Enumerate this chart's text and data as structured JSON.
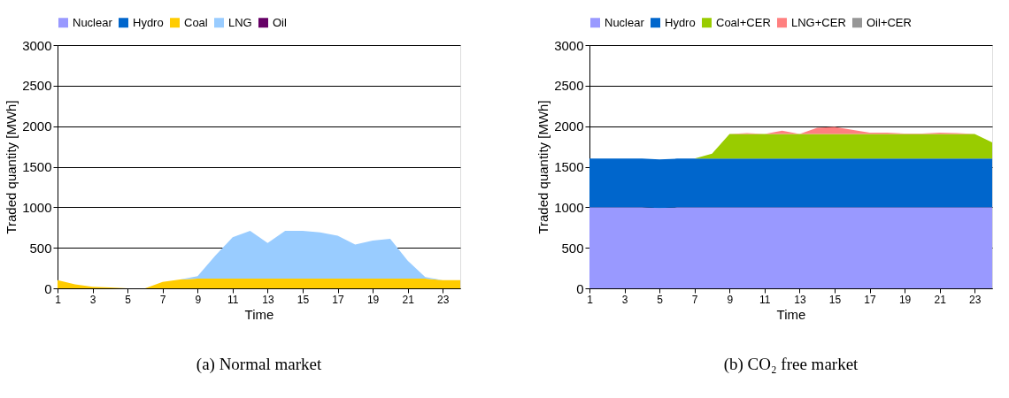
{
  "chart_data": [
    {
      "type": "area",
      "title": "(a) Normal market",
      "xlabel": "Time",
      "ylabel": "Traded quantity [MWh]",
      "stacked": true,
      "legend": "top",
      "grid": "y",
      "x": [
        1,
        2,
        3,
        4,
        5,
        6,
        7,
        8,
        9,
        10,
        11,
        12,
        13,
        14,
        15,
        16,
        17,
        18,
        19,
        20,
        21,
        22,
        23,
        24
      ],
      "xlim": [
        1,
        24
      ],
      "xticks": [
        1,
        3,
        5,
        7,
        9,
        11,
        13,
        15,
        17,
        19,
        21,
        23
      ],
      "ylim": [
        0,
        3000
      ],
      "yticks": [
        0,
        500,
        1000,
        1500,
        2000,
        2500,
        3000
      ],
      "series": [
        {
          "name": "Nuclear",
          "color": "#9999ff",
          "values": [
            null,
            null,
            null,
            null,
            null,
            null,
            null,
            null,
            null,
            null,
            null,
            null,
            null,
            null,
            null,
            null,
            null,
            null,
            null,
            null,
            null,
            null,
            null,
            null
          ]
        },
        {
          "name": "Hydro",
          "color": "#0066cc",
          "values": [
            null,
            null,
            null,
            null,
            null,
            null,
            null,
            null,
            null,
            null,
            null,
            null,
            null,
            null,
            null,
            null,
            null,
            null,
            null,
            null,
            null,
            null,
            null,
            null
          ]
        },
        {
          "name": "Coal",
          "color": "#ffcc00",
          "values": [
            100,
            50,
            20,
            10,
            0,
            0,
            80,
            110,
            120,
            120,
            120,
            120,
            120,
            120,
            120,
            120,
            120,
            120,
            120,
            120,
            120,
            120,
            100,
            100
          ]
        },
        {
          "name": "LNG",
          "color": "#99ccff",
          "values": [
            0,
            0,
            0,
            0,
            0,
            0,
            0,
            0,
            30,
            280,
            510,
            590,
            440,
            590,
            590,
            570,
            530,
            420,
            470,
            490,
            220,
            20,
            0,
            0
          ]
        },
        {
          "name": "Oil",
          "color": "#660066",
          "values": [
            null,
            null,
            null,
            null,
            null,
            null,
            null,
            null,
            null,
            null,
            null,
            null,
            null,
            null,
            null,
            null,
            null,
            null,
            null,
            null,
            null,
            null,
            null,
            null
          ]
        }
      ]
    },
    {
      "type": "area",
      "title": "(b) CO₂ free market",
      "xlabel": "Time",
      "ylabel": "Traded quantity [MWh]",
      "stacked": true,
      "legend": "top",
      "grid": "y",
      "x": [
        1,
        2,
        3,
        4,
        5,
        6,
        7,
        8,
        9,
        10,
        11,
        12,
        13,
        14,
        15,
        16,
        17,
        18,
        19,
        20,
        21,
        22,
        23,
        24
      ],
      "xlim": [
        1,
        24
      ],
      "xticks": [
        1,
        3,
        5,
        7,
        9,
        11,
        13,
        15,
        17,
        19,
        21,
        23
      ],
      "ylim": [
        0,
        3000
      ],
      "yticks": [
        0,
        500,
        1000,
        1500,
        2000,
        2500,
        3000
      ],
      "series": [
        {
          "name": "Nuclear",
          "color": "#9999ff",
          "values": [
            1000,
            1000,
            1000,
            1000,
            990,
            1000,
            1000,
            1000,
            1000,
            1000,
            1000,
            1000,
            1000,
            1000,
            1000,
            1000,
            1000,
            1000,
            1000,
            1000,
            1000,
            1000,
            1000,
            1000
          ]
        },
        {
          "name": "Hydro",
          "color": "#0066cc",
          "values": [
            600,
            600,
            600,
            600,
            600,
            600,
            600,
            600,
            600,
            600,
            600,
            600,
            600,
            600,
            600,
            600,
            600,
            600,
            600,
            600,
            600,
            600,
            600,
            600
          ]
        },
        {
          "name": "Coal+CER",
          "color": "#99cc00",
          "values": [
            0,
            0,
            0,
            0,
            0,
            0,
            0,
            60,
            305,
            305,
            305,
            305,
            305,
            305,
            305,
            305,
            305,
            305,
            305,
            305,
            305,
            305,
            305,
            200
          ]
        },
        {
          "name": "LNG+CER",
          "color": "#ff8080",
          "values": [
            0,
            0,
            0,
            0,
            0,
            0,
            0,
            0,
            0,
            10,
            0,
            40,
            0,
            75,
            85,
            50,
            15,
            15,
            5,
            5,
            15,
            10,
            0,
            0
          ]
        },
        {
          "name": "Oil+CER",
          "color": "#969696",
          "values": [
            null,
            null,
            null,
            null,
            null,
            null,
            null,
            null,
            null,
            null,
            null,
            null,
            null,
            null,
            null,
            null,
            null,
            null,
            null,
            null,
            null,
            null,
            null,
            null
          ]
        }
      ]
    }
  ]
}
